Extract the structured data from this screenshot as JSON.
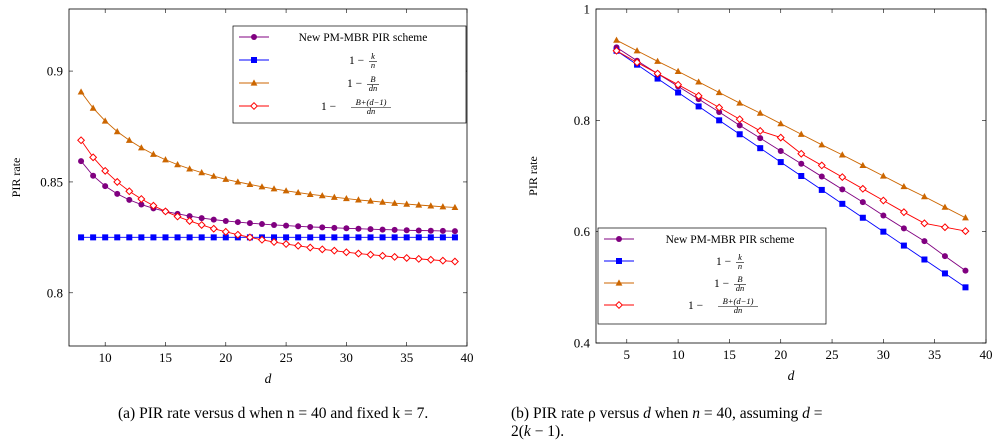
{
  "captions": {
    "a": "(a) PIR rate versus d when n = 40 and fixed k = 7.",
    "b_line1": "(b) PIR rate ρ versus d when n = 40, assuming d =",
    "b_line2": "2(k − 1)."
  },
  "chart_data": [
    {
      "type": "line",
      "xlabel": "d",
      "ylabel": "PIR rate",
      "xlim": [
        7,
        40
      ],
      "ylim": [
        0.776,
        0.928
      ],
      "xticks": [
        10,
        15,
        20,
        25,
        30,
        35,
        40
      ],
      "yticks": [
        0.8,
        0.85,
        0.9
      ],
      "ytick_labels": [
        "0.8",
        "0.85",
        "0.9"
      ],
      "grid": false,
      "legend": "top-right",
      "x": [
        8,
        9,
        10,
        11,
        12,
        13,
        14,
        15,
        16,
        17,
        18,
        19,
        20,
        21,
        22,
        23,
        24,
        25,
        26,
        27,
        28,
        29,
        30,
        31,
        32,
        33,
        34,
        35,
        36,
        37,
        38,
        39
      ],
      "series": [
        {
          "name": "New PM-MBR PIR scheme",
          "color": "#800080",
          "marker": "circle",
          "values": [
            0.8594,
            0.8528,
            0.8481,
            0.8446,
            0.8419,
            0.8398,
            0.8381,
            0.8367,
            0.8356,
            0.8346,
            0.8337,
            0.833,
            0.8324,
            0.8319,
            0.8314,
            0.831,
            0.8306,
            0.8303,
            0.83,
            0.8297,
            0.8295,
            0.8293,
            0.8291,
            0.8289,
            0.8287,
            0.8285,
            0.8284,
            0.8282,
            0.8281,
            0.828,
            0.8279,
            0.8278
          ]
        },
        {
          "name": "1 − k/n",
          "color": "#0000ff",
          "marker": "square",
          "values": [
            0.825,
            0.825,
            0.825,
            0.825,
            0.825,
            0.825,
            0.825,
            0.825,
            0.825,
            0.825,
            0.825,
            0.825,
            0.825,
            0.825,
            0.825,
            0.825,
            0.825,
            0.825,
            0.825,
            0.825,
            0.825,
            0.825,
            0.825,
            0.825,
            0.825,
            0.825,
            0.825,
            0.825,
            0.825,
            0.825,
            0.825,
            0.825
          ]
        },
        {
          "name": "1 − B/(dn)",
          "color": "#cc6600",
          "marker": "triangle",
          "values": [
            0.8906,
            0.8833,
            0.8775,
            0.8727,
            0.8688,
            0.8654,
            0.8625,
            0.86,
            0.8578,
            0.8559,
            0.8542,
            0.8526,
            0.8512,
            0.85,
            0.8489,
            0.8478,
            0.8469,
            0.846,
            0.8452,
            0.8444,
            0.8438,
            0.8431,
            0.8425,
            0.8419,
            0.8414,
            0.8409,
            0.8404,
            0.84,
            0.8396,
            0.8392,
            0.8388,
            0.8385
          ]
        },
        {
          "name": "1 − (B+(d−1))/(dn)",
          "color": "#ff0000",
          "marker": "diamond",
          "values": [
            0.8688,
            0.8611,
            0.855,
            0.85,
            0.8458,
            0.8423,
            0.8393,
            0.8367,
            0.8344,
            0.8324,
            0.8306,
            0.8289,
            0.8275,
            0.8262,
            0.825,
            0.8239,
            0.8229,
            0.822,
            0.8212,
            0.8204,
            0.8196,
            0.819,
            0.8183,
            0.8177,
            0.8172,
            0.8167,
            0.8162,
            0.8157,
            0.8153,
            0.8149,
            0.8145,
            0.8141
          ]
        }
      ]
    },
    {
      "type": "line",
      "xlabel": "d",
      "ylabel": "PIR rate",
      "xlim": [
        2,
        40
      ],
      "ylim": [
        0.4,
        1
      ],
      "xticks": [
        5,
        10,
        15,
        20,
        25,
        30,
        35,
        40
      ],
      "yticks": [
        0.4,
        0.6,
        0.8,
        1
      ],
      "ytick_labels": [
        "0.4",
        "0.6",
        "0.8",
        "1"
      ],
      "grid": false,
      "legend": "bottom-left",
      "x": [
        4,
        6,
        8,
        10,
        12,
        14,
        16,
        18,
        20,
        22,
        24,
        26,
        28,
        30,
        32,
        34,
        36,
        38
      ],
      "series": [
        {
          "name": "New PM-MBR PIR scheme",
          "color": "#800080",
          "marker": "circle",
          "values": [
            0.931,
            0.907,
            0.884,
            0.861,
            0.838,
            0.815,
            0.791,
            0.768,
            0.745,
            0.722,
            0.699,
            0.676,
            0.653,
            0.629,
            0.606,
            0.583,
            0.556,
            0.53
          ]
        },
        {
          "name": "1 − k/n",
          "color": "#0000ff",
          "marker": "square",
          "values": [
            0.925,
            0.9,
            0.875,
            0.85,
            0.825,
            0.8,
            0.775,
            0.75,
            0.725,
            0.7,
            0.675,
            0.65,
            0.625,
            0.6,
            0.575,
            0.55,
            0.525,
            0.5
          ]
        },
        {
          "name": "1 − B/(dn)",
          "color": "#cc6600",
          "marker": "triangle",
          "values": [
            0.944,
            0.925,
            0.906,
            0.888,
            0.869,
            0.85,
            0.831,
            0.813,
            0.794,
            0.775,
            0.756,
            0.738,
            0.719,
            0.7,
            0.681,
            0.663,
            0.644,
            0.625
          ]
        },
        {
          "name": "1 − (B+(d−1))/(dn)",
          "color": "#ff0000",
          "marker": "diamond",
          "values": [
            0.925,
            0.904,
            0.884,
            0.864,
            0.844,
            0.823,
            0.802,
            0.781,
            0.769,
            0.74,
            0.719,
            0.698,
            0.677,
            0.656,
            0.635,
            0.615,
            0.608,
            0.601
          ]
        }
      ]
    }
  ]
}
